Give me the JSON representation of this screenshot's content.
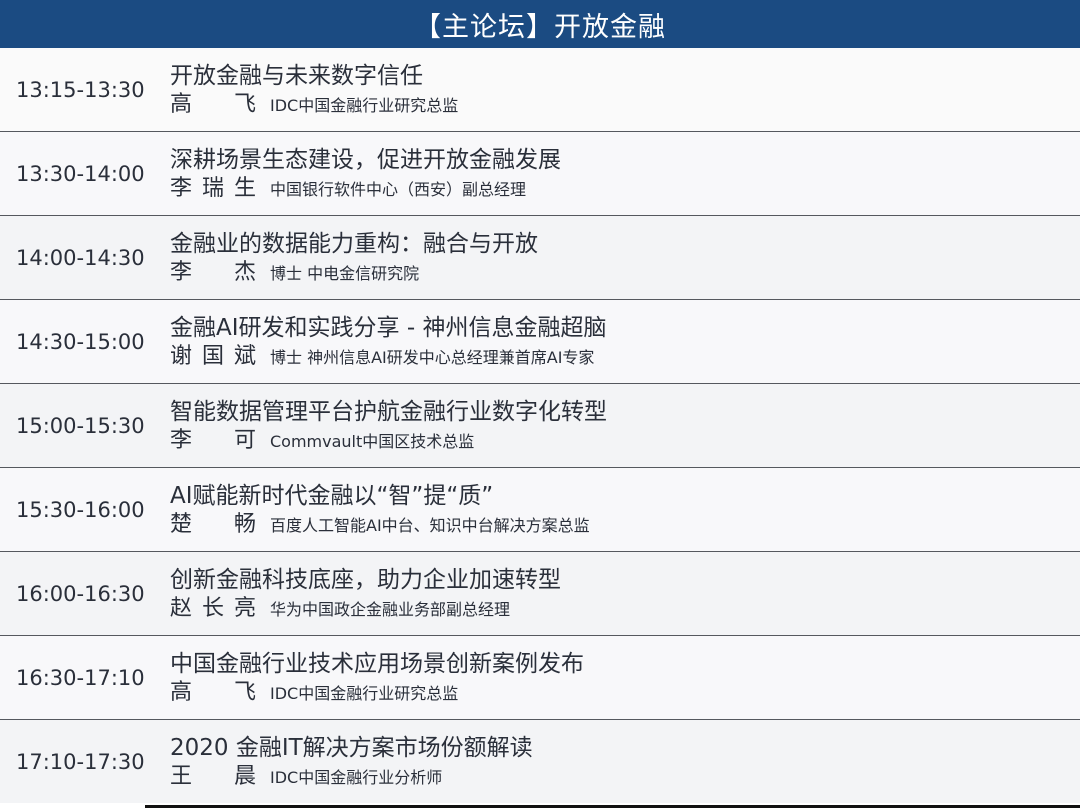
{
  "header": {
    "title": "【主论坛】开放金融"
  },
  "sessions": [
    {
      "time": "13:15-13:30",
      "title": "开放金融与未来数字信任",
      "speaker": "高　飞",
      "role": "IDC中国金融行业研究总监"
    },
    {
      "time": "13:30-14:00",
      "title": "深耕场景生态建设，促进开放金融发展",
      "speaker": "李瑞生",
      "role": "中国银行软件中心（西安）副总经理"
    },
    {
      "time": "14:00-14:30",
      "title": "金融业的数据能力重构：融合与开放",
      "speaker": "李　杰",
      "role": "博士 中电金信研究院"
    },
    {
      "time": "14:30-15:00",
      "title": "金融AI研发和实践分享 - 神州信息金融超脑",
      "speaker": "谢国斌",
      "role": "博士 神州信息AI研发中心总经理兼首席AI专家"
    },
    {
      "time": "15:00-15:30",
      "title": "智能数据管理平台护航金融行业数字化转型",
      "speaker": "李　可",
      "role": "Commvault中国区技术总监"
    },
    {
      "time": "15:30-16:00",
      "title": "AI赋能新时代金融以“智”提“质”",
      "speaker": "楚　畅",
      "role": "百度人工智能AI中台、知识中台解决方案总监"
    },
    {
      "time": "16:00-16:30",
      "title": "创新金融科技底座，助力企业加速转型",
      "speaker": "赵长亮",
      "role": "华为中国政企金融业务部副总经理"
    },
    {
      "time": "16:30-17:10",
      "title": "中国金融行业技术应用场景创新案例发布",
      "speaker": "高　飞",
      "role": "IDC中国金融行业研究总监"
    },
    {
      "time": "17:10-17:30",
      "title": "2020 金融IT解决方案市场份额解读",
      "speaker": "王　晨",
      "role": "IDC中国金融行业分析师"
    }
  ]
}
